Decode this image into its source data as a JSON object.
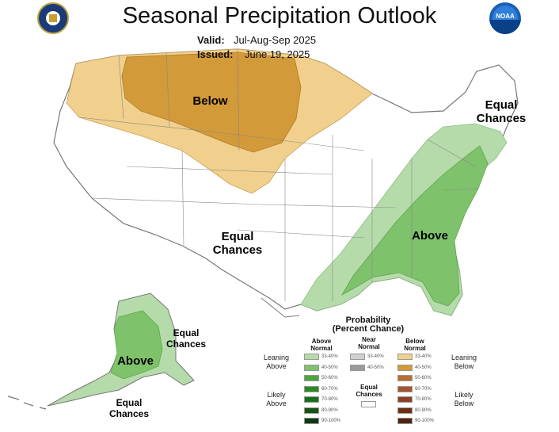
{
  "title": "Seasonal Precipitation Outlook",
  "valid_label": "Valid:",
  "valid_value": "Jul-Aug-Sep 2025",
  "issued_label": "Issued:",
  "issued_value": "June 19, 2025",
  "logos": {
    "left": "commerce-seal-icon",
    "right": "noaa-logo-icon",
    "noaa_text": "NOAA"
  },
  "regions": {
    "below": "Below",
    "above_east": "Above",
    "above_alaska": "Above",
    "equal_center": [
      "Equal",
      "Chances"
    ],
    "equal_northeast": [
      "Equal",
      "Chances"
    ],
    "equal_alaska_east": [
      "Equal",
      "Chances"
    ],
    "equal_alaska_south": [
      "Equal",
      "Chances"
    ]
  },
  "colors": {
    "below_33_40": "#f0d08c",
    "below_40_50": "#d39a3a",
    "above_33_40": "#b5dbaa",
    "above_40_50": "#7fc26c",
    "near_33_40": "#d0d0d0",
    "near_40_50": "#9a9a9a",
    "equal": "#ffffff"
  },
  "legend": {
    "title_1": "Probability",
    "title_2": "(Percent Chance)",
    "above_header": [
      "Above",
      "Normal"
    ],
    "near_header": [
      "Near",
      "Normal"
    ],
    "below_header": [
      "Below",
      "Normal"
    ],
    "equal_header": [
      "Equal",
      "Chances"
    ],
    "leaning_above": [
      "Leaning",
      "Above"
    ],
    "likely_above": [
      "Likely",
      "Above"
    ],
    "leaning_below": [
      "Leaning",
      "Below"
    ],
    "likely_below": [
      "Likely",
      "Below"
    ],
    "above_bins": [
      {
        "label": "33-40%",
        "color": "#b5dbaa"
      },
      {
        "label": "40-50%",
        "color": "#7fc26c"
      },
      {
        "label": "50-60%",
        "color": "#4aa83a"
      },
      {
        "label": "60-70%",
        "color": "#2a8a22"
      },
      {
        "label": "70-80%",
        "color": "#1a6e1a"
      },
      {
        "label": "80-90%",
        "color": "#155214"
      },
      {
        "label": "90-100%",
        "color": "#0e3a0e"
      }
    ],
    "near_bins": [
      {
        "label": "33-40%",
        "color": "#d0d0d0"
      },
      {
        "label": "40-50%",
        "color": "#9a9a9a"
      }
    ],
    "below_bins": [
      {
        "label": "33-40%",
        "color": "#f0d08c"
      },
      {
        "label": "40-50%",
        "color": "#d39a3a"
      },
      {
        "label": "50-60%",
        "color": "#bb6e30"
      },
      {
        "label": "60-70%",
        "color": "#a4542a"
      },
      {
        "label": "70-80%",
        "color": "#8e4024"
      },
      {
        "label": "80-90%",
        "color": "#6e2e14"
      },
      {
        "label": "90-100%",
        "color": "#4e2410"
      }
    ]
  }
}
